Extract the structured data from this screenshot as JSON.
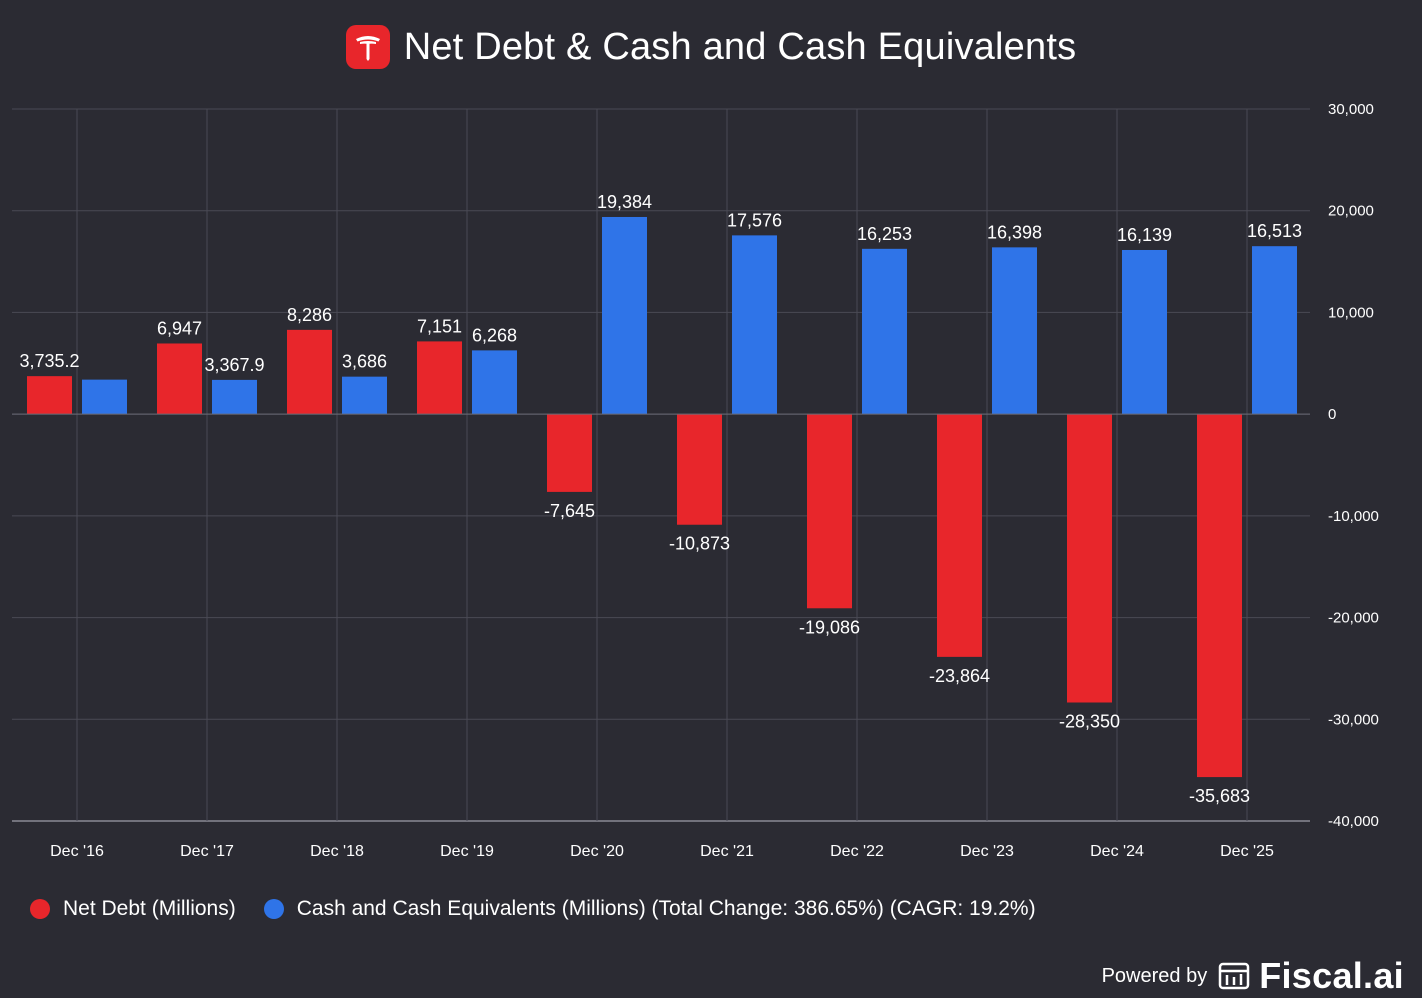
{
  "header": {
    "title": "Net Debt & Cash and Cash Equivalents",
    "logo_icon": "tesla-logo-icon"
  },
  "chart_data": {
    "type": "bar",
    "title": "Net Debt & Cash and Cash Equivalents",
    "categories": [
      "Dec '16",
      "Dec '17",
      "Dec '18",
      "Dec '19",
      "Dec '20",
      "Dec '21",
      "Dec '22",
      "Dec '23",
      "Dec '24",
      "Dec '25"
    ],
    "series": [
      {
        "name": "Net Debt (Millions)",
        "color": "#e8262b",
        "values": [
          3735.2,
          6947,
          8286,
          7151,
          -7645,
          -10873,
          -19086,
          -23864,
          -28350,
          -35683
        ],
        "labels": [
          "3,735.2",
          "6,947",
          "8,286",
          "7,151",
          "-7,645",
          "-10,873",
          "-19,086",
          "-23,864",
          "-28,350",
          "-35,683"
        ]
      },
      {
        "name": "Cash and Cash Equivalents (Millions) (Total Change: 386.65%) (CAGR: 19.2%)",
        "color": "#2f74e8",
        "values": [
          3393.2,
          3367.9,
          3686,
          6268,
          19384,
          17576,
          16253,
          16398,
          16139,
          16513
        ],
        "labels": [
          "",
          "3,367.9",
          "3,686",
          "6,268",
          "19,384",
          "17,576",
          "16,253",
          "16,398",
          "16,139",
          "16,513"
        ]
      }
    ],
    "ylim": [
      -40000,
      30000
    ],
    "yticks": [
      30000,
      20000,
      10000,
      0,
      -10000,
      -20000,
      -30000,
      -40000
    ],
    "ytick_labels": [
      "30,000",
      "20,000",
      "10,000",
      "0",
      "-10,000",
      "-20,000",
      "-30,000",
      "-40,000"
    ],
    "xlabel": "",
    "ylabel": "",
    "grid": true,
    "legend_position": "bottom-left"
  },
  "legend": {
    "items": [
      {
        "label": "Net Debt (Millions)",
        "color": "#e8262b"
      },
      {
        "label": "Cash and Cash Equivalents (Millions) (Total Change: 386.65%) (CAGR: 19.2%)",
        "color": "#2f74e8"
      }
    ]
  },
  "footer": {
    "powered_by": "Powered by",
    "brand": "Fiscal.ai",
    "brand_icon": "fiscal-logo-icon"
  }
}
